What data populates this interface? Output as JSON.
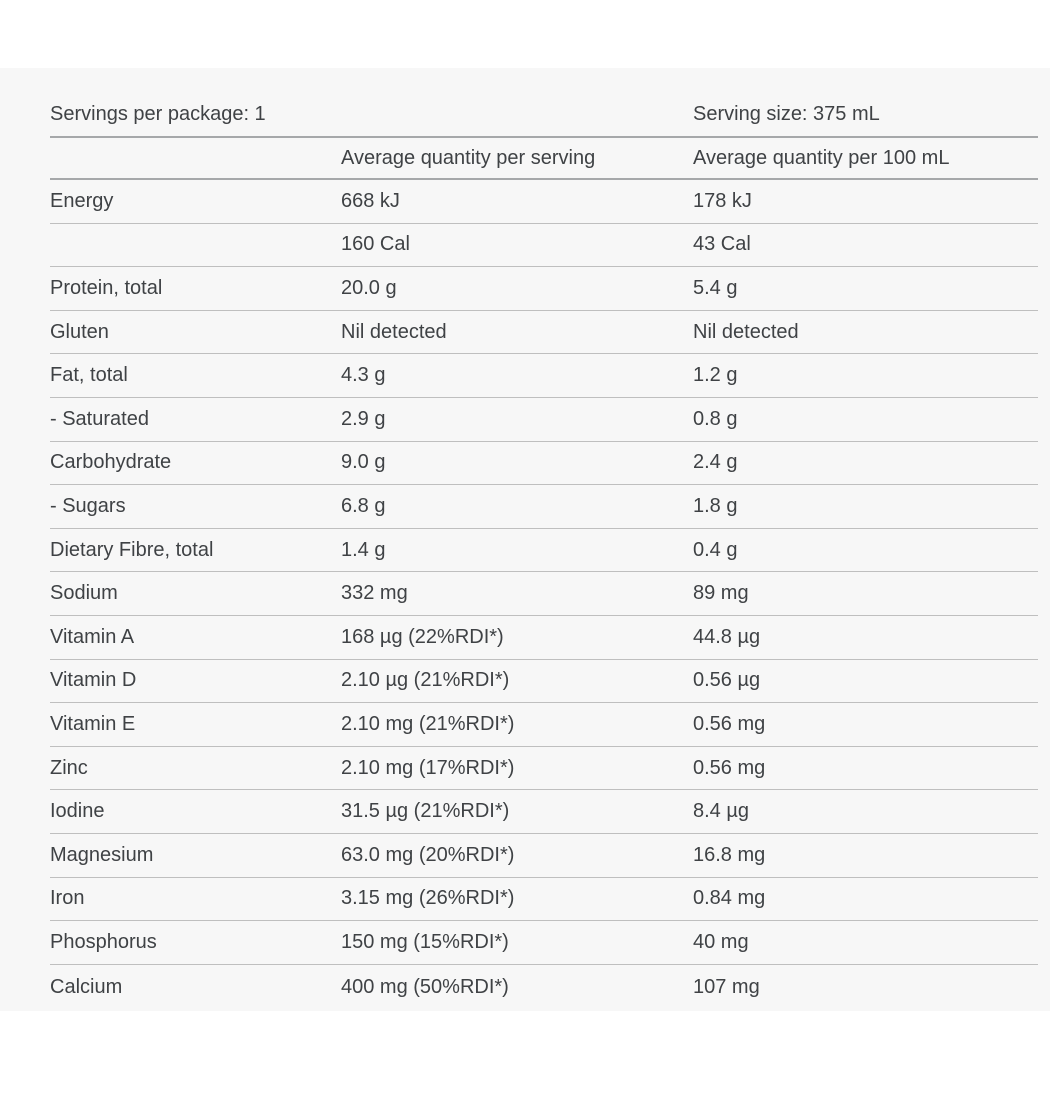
{
  "page": {
    "background_color": "#ffffff",
    "panel_background_color": "#f7f7f7",
    "text_color": "#3f4245",
    "heavy_rule_color": "#a6a8aa",
    "light_rule_color": "#bfbfbf"
  },
  "serving_info": {
    "servings_per_package": "Servings per package: 1",
    "serving_size": "Serving size: 375 mL"
  },
  "table": {
    "columns": {
      "nutrient": "",
      "per_serving": "Average quantity per serving",
      "per_100ml": "Average quantity per 100 mL"
    },
    "rows": [
      {
        "nutrient": "Energy",
        "per_serving": "668 kJ",
        "per_100ml": "178 kJ"
      },
      {
        "nutrient": "",
        "per_serving": "160 Cal",
        "per_100ml": "43 Cal"
      },
      {
        "nutrient": "Protein, total",
        "per_serving": "20.0 g",
        "per_100ml": "5.4 g"
      },
      {
        "nutrient": "Gluten",
        "per_serving": "Nil detected",
        "per_100ml": "Nil detected"
      },
      {
        "nutrient": "Fat, total",
        "per_serving": "4.3 g",
        "per_100ml": "1.2 g"
      },
      {
        "nutrient": "- Saturated",
        "per_serving": "2.9 g",
        "per_100ml": "0.8 g"
      },
      {
        "nutrient": "Carbohydrate",
        "per_serving": "9.0 g",
        "per_100ml": "2.4 g"
      },
      {
        "nutrient": "- Sugars",
        "per_serving": "6.8 g",
        "per_100ml": "1.8 g"
      },
      {
        "nutrient": "Dietary Fibre, total",
        "per_serving": "1.4 g",
        "per_100ml": "0.4 g"
      },
      {
        "nutrient": "Sodium",
        "per_serving": "332 mg",
        "per_100ml": "89 mg"
      },
      {
        "nutrient": "Vitamin A",
        "per_serving": "168 µg (22%RDI*)",
        "per_100ml": "44.8 µg"
      },
      {
        "nutrient": "Vitamin D",
        "per_serving": "2.10 µg (21%RDI*)",
        "per_100ml": "0.56 µg"
      },
      {
        "nutrient": "Vitamin E",
        "per_serving": "2.10 mg (21%RDI*)",
        "per_100ml": "0.56 mg"
      },
      {
        "nutrient": "Zinc",
        "per_serving": "2.10 mg (17%RDI*)",
        "per_100ml": "0.56 mg"
      },
      {
        "nutrient": "Iodine",
        "per_serving": "31.5 µg (21%RDI*)",
        "per_100ml": "8.4 µg"
      },
      {
        "nutrient": "Magnesium",
        "per_serving": "63.0 mg (20%RDI*)",
        "per_100ml": "16.8 mg"
      },
      {
        "nutrient": "Iron",
        "per_serving": "3.15 mg (26%RDI*)",
        "per_100ml": "0.84 mg"
      },
      {
        "nutrient": "Phosphorus",
        "per_serving": "150 mg (15%RDI*)",
        "per_100ml": "40 mg"
      },
      {
        "nutrient": "Calcium",
        "per_serving": "400 mg (50%RDI*)",
        "per_100ml": "107 mg"
      }
    ]
  }
}
